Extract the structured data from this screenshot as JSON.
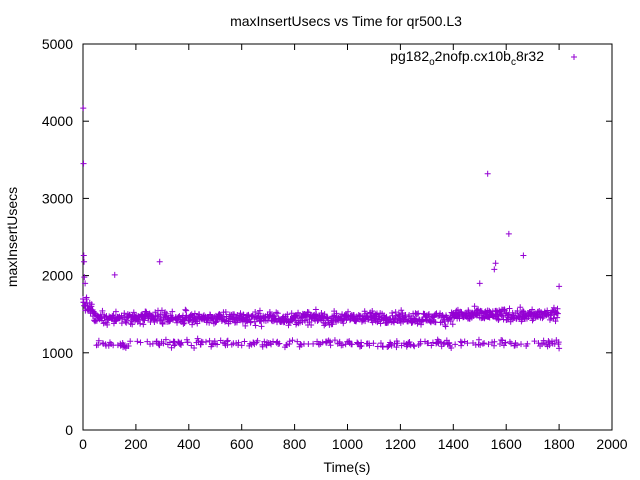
{
  "chart_data": {
    "type": "scatter",
    "title": "maxInsertUsecs vs Time for qr500.L3",
    "xlabel": "Time(s)",
    "ylabel": "maxInsertUsecs",
    "xlim": [
      0,
      2000
    ],
    "ylim": [
      0,
      5000
    ],
    "x_ticks": [
      "0",
      "200",
      "400",
      "600",
      "800",
      "1000",
      "1200",
      "1400",
      "1600",
      "1800",
      "2000"
    ],
    "y_ticks": [
      "0",
      "1000",
      "2000",
      "3000",
      "4000",
      "5000"
    ],
    "legend_position": "top-right",
    "series": [
      {
        "name": "pg182_o2nofp.cx10b_c8r32",
        "legend_label": {
          "base": "pg182",
          "sub1": "o",
          "mid": "2nofp.cx10b",
          "sub2": "c",
          "tail": "8r32"
        },
        "color": "#9400d3",
        "marker": "+",
        "outliers": [
          [
            1,
            4170
          ],
          [
            2,
            3450
          ],
          [
            3,
            2260
          ],
          [
            4,
            2180
          ],
          [
            5,
            1980
          ],
          [
            8,
            1900
          ],
          [
            120,
            2010
          ],
          [
            290,
            2180
          ],
          [
            1530,
            3320
          ],
          [
            1560,
            2160
          ],
          [
            1555,
            2080
          ],
          [
            1610,
            2540
          ],
          [
            1665,
            2260
          ],
          [
            1500,
            1900
          ],
          [
            1800,
            1860
          ]
        ],
        "pattern": {
          "x_start": 0,
          "x_end": 1800,
          "step_seconds": 1.5,
          "upper_band_center": 1450,
          "upper_band_spread": 120,
          "lower_band_center": 1120,
          "lower_band_spread": 70,
          "initial_plateau": 1650,
          "note": "dense + markers, upper cluster ~1300-1700 usecs, lower cluster ~1000-1250 usecs"
        }
      }
    ]
  }
}
